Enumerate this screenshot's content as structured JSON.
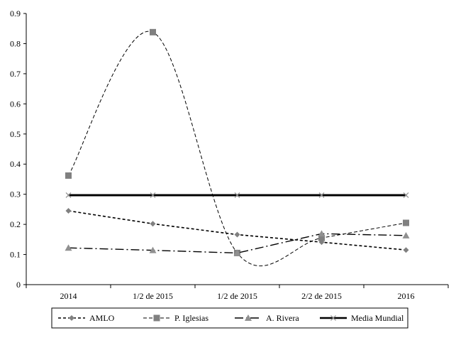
{
  "chart_data": {
    "type": "line",
    "categories": [
      "2014",
      "1/2 de 2015",
      "1/2 de 2015",
      "2/2 de 2015",
      "2016"
    ],
    "y_ticks": [
      "0",
      "0.1",
      "0.2",
      "0.3",
      "0.4",
      "0.5",
      "0.6",
      "0.7",
      "0.8",
      "0.9"
    ],
    "ylim": [
      0,
      0.9
    ],
    "grid": false,
    "legend_position": "bottom",
    "series": [
      {
        "name": "AMLO",
        "values": [
          0.245,
          0.202,
          0.166,
          0.141,
          0.115
        ],
        "marker": "diamond",
        "dash": "short",
        "color": "#000000",
        "width": 1.6,
        "marker_color": "#808080",
        "smooth": false
      },
      {
        "name": "P. Iglesias",
        "values": [
          0.362,
          0.838,
          0.105,
          0.155,
          0.205
        ],
        "marker": "square",
        "dash": "dash",
        "color": "#000000",
        "width": 1.0,
        "marker_color": "#808080",
        "smooth": true
      },
      {
        "name": "A. Rivera",
        "values": [
          0.122,
          0.114,
          0.105,
          0.169,
          0.163
        ],
        "marker": "triangle",
        "dash": "dashdot",
        "color": "#000000",
        "width": 1.4,
        "marker_color": "#909090",
        "smooth": false
      },
      {
        "name": "Media Mundial",
        "values": [
          0.297,
          0.297,
          0.297,
          0.297,
          0.297
        ],
        "marker": "x",
        "dash": "solid",
        "color": "#000000",
        "width": 3.0,
        "marker_color": "#909090",
        "smooth": false
      }
    ]
  }
}
